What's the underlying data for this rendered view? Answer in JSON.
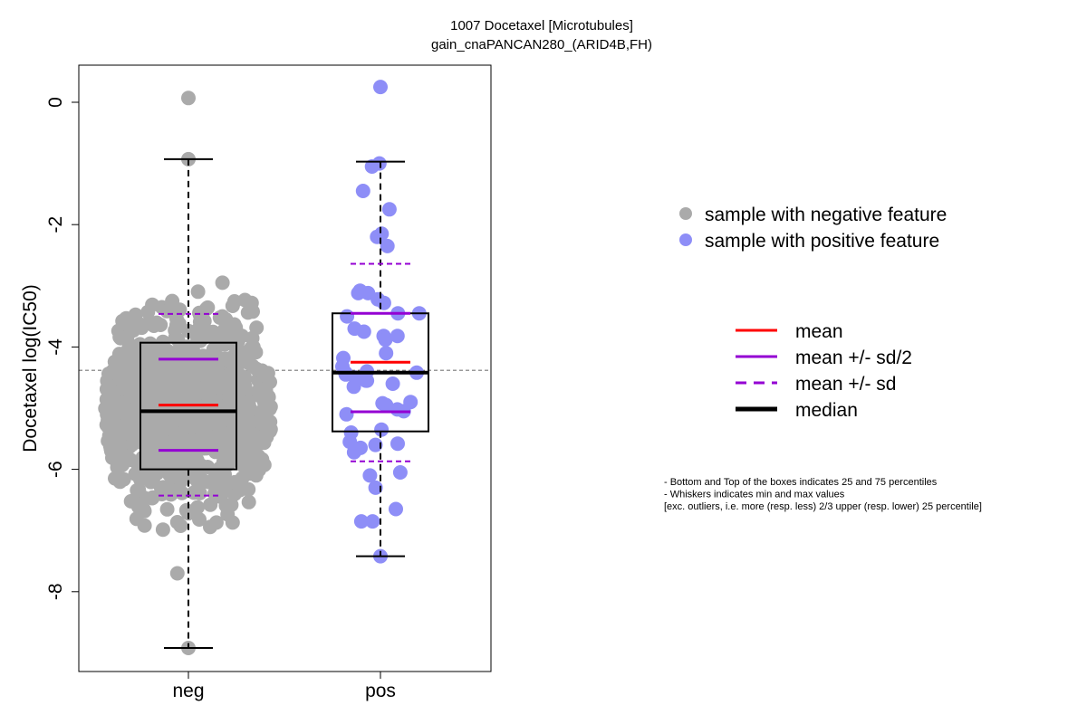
{
  "chart_data": {
    "type": "boxplot-with-points",
    "title": "1007 Docetaxel [Microtubules]",
    "subtitle": "gain_cnaPANCAN280_(ARID4B,FH)",
    "xlabel": "",
    "ylabel": "Docetaxel log(IC50)",
    "categories": [
      "neg",
      "pos"
    ],
    "y_ticks": [
      0,
      -2,
      -4,
      -6,
      -8
    ],
    "ylim": [
      -9.3,
      0.6
    ],
    "overall_mean": -4.38,
    "groups": [
      {
        "name": "neg",
        "color": "#aaaaaa",
        "n": 900,
        "whisker_min": -8.92,
        "q1": -6.0,
        "median": -5.05,
        "q3": -3.93,
        "whisker_max": -0.93,
        "mean": -4.95,
        "mean_minus_half_sd": -5.69,
        "mean_plus_half_sd": -4.2,
        "mean_minus_sd": -6.43,
        "mean_plus_sd": -3.46,
        "outliers": [
          0.07
        ]
      },
      {
        "name": "pos",
        "color": "#8e8ef7",
        "n": 64,
        "whisker_min": -7.42,
        "q1": -5.38,
        "median": -4.42,
        "q3": -3.45,
        "whisker_max": -0.97,
        "mean": -4.25,
        "mean_minus_half_sd": -5.06,
        "mean_plus_half_sd": -3.45,
        "mean_minus_sd": -5.87,
        "mean_plus_sd": -2.64,
        "outliers": [
          0.25
        ],
        "points": [
          0.25,
          -1.05,
          -1.0,
          -1.45,
          -1.75,
          -2.15,
          -2.2,
          -2.35,
          -3.08,
          -3.12,
          -3.12,
          -3.22,
          -3.28,
          -3.45,
          -3.45,
          -3.5,
          -3.7,
          -3.75,
          -3.82,
          -3.82,
          -3.88,
          -4.1,
          -4.18,
          -4.32,
          -4.4,
          -4.42,
          -4.42,
          -4.45,
          -4.5,
          -4.55,
          -4.55,
          -4.6,
          -4.65,
          -4.9,
          -4.92,
          -4.95,
          -5.02,
          -5.05,
          -5.1,
          -5.35,
          -5.4,
          -5.55,
          -5.58,
          -5.6,
          -5.65,
          -5.72,
          -6.05,
          -6.1,
          -6.3,
          -6.65,
          -6.85,
          -6.85,
          -7.42
        ]
      }
    ],
    "legend_points": [
      {
        "label": "sample with negative feature",
        "color": "#aaaaaa"
      },
      {
        "label": "sample with positive feature",
        "color": "#8e8ef7"
      }
    ],
    "legend_lines": [
      {
        "label": "mean",
        "color": "#ff0000",
        "style": "solid"
      },
      {
        "label": "mean +/- sd/2",
        "color": "#9400d3",
        "style": "solid"
      },
      {
        "label": "mean +/- sd",
        "color": "#9400d3",
        "style": "dashed"
      },
      {
        "label": "median",
        "color": "#000000",
        "style": "solid-thick"
      }
    ],
    "notes": [
      "- Bottom and Top of the boxes indicates 25 and 75 percentiles",
      "- Whiskers indicates min and max values",
      "[exc. outliers, i.e. more (resp. less) 2/3 upper (resp. lower) 25 percentile]"
    ]
  }
}
